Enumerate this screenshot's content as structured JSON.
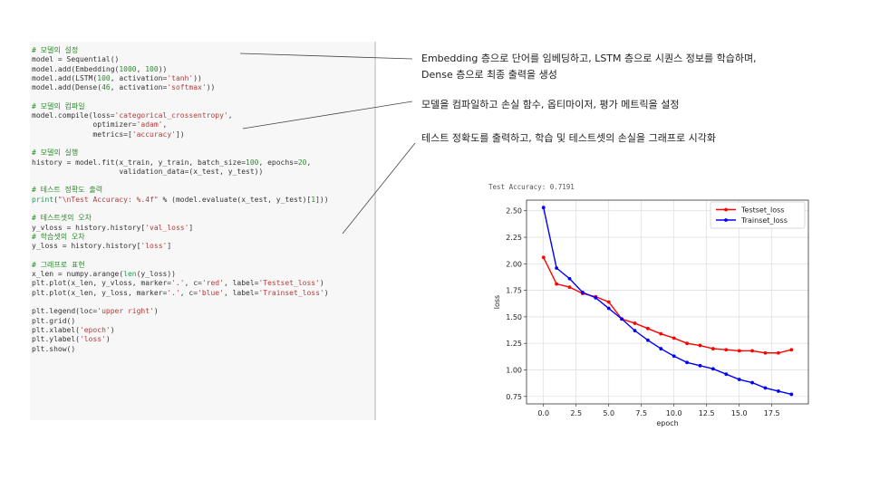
{
  "code_lines": [
    [
      {
        "t": "# 모델의 설정",
        "c": "cmt"
      }
    ],
    [
      {
        "t": "model = Sequential()",
        "c": ""
      }
    ],
    [
      {
        "t": "model.add(Embedding(",
        "c": ""
      },
      {
        "t": "1000",
        "c": "num"
      },
      {
        "t": ", ",
        "c": ""
      },
      {
        "t": "100",
        "c": "num"
      },
      {
        "t": "))",
        "c": ""
      }
    ],
    [
      {
        "t": "model.add(LSTM(",
        "c": ""
      },
      {
        "t": "100",
        "c": "num"
      },
      {
        "t": ", activation=",
        "c": ""
      },
      {
        "t": "'tanh'",
        "c": "str"
      },
      {
        "t": "))",
        "c": ""
      }
    ],
    [
      {
        "t": "model.add(Dense(",
        "c": ""
      },
      {
        "t": "46",
        "c": "num"
      },
      {
        "t": ", activation=",
        "c": ""
      },
      {
        "t": "'softmax'",
        "c": "str"
      },
      {
        "t": "))",
        "c": ""
      }
    ],
    [],
    [
      {
        "t": "# 모델의 컴파일",
        "c": "cmt"
      }
    ],
    [
      {
        "t": "model.compile(loss=",
        "c": ""
      },
      {
        "t": "'categorical_crossentropy'",
        "c": "str"
      },
      {
        "t": ",",
        "c": ""
      }
    ],
    [
      {
        "t": "              optimizer=",
        "c": ""
      },
      {
        "t": "'adam'",
        "c": "str"
      },
      {
        "t": ",",
        "c": ""
      }
    ],
    [
      {
        "t": "              metrics=[",
        "c": ""
      },
      {
        "t": "'accuracy'",
        "c": "str"
      },
      {
        "t": "])",
        "c": ""
      }
    ],
    [],
    [
      {
        "t": "# 모델의 실행",
        "c": "cmt"
      }
    ],
    [
      {
        "t": "history = model.fit(x_train, y_train, batch_size=",
        "c": ""
      },
      {
        "t": "100",
        "c": "num"
      },
      {
        "t": ", epochs=",
        "c": ""
      },
      {
        "t": "20",
        "c": "num"
      },
      {
        "t": ",",
        "c": ""
      }
    ],
    [
      {
        "t": "                    validation_data=(x_test, y_test))",
        "c": ""
      }
    ],
    [],
    [
      {
        "t": "# 테스트 정확도 출력",
        "c": "cmt"
      }
    ],
    [
      {
        "t": "print",
        "c": "kw"
      },
      {
        "t": "(",
        "c": ""
      },
      {
        "t": "\"\\nTest Accuracy: %.4f\"",
        "c": "str"
      },
      {
        "t": " % (model.evaluate(x_test, y_test)[",
        "c": ""
      },
      {
        "t": "1",
        "c": "num"
      },
      {
        "t": "]))",
        "c": ""
      }
    ],
    [],
    [
      {
        "t": "# 테스트셋의 오차",
        "c": "cmt"
      }
    ],
    [
      {
        "t": "y_vloss = history.history[",
        "c": ""
      },
      {
        "t": "'val_loss'",
        "c": "str"
      },
      {
        "t": "]",
        "c": ""
      }
    ],
    [
      {
        "t": "# 학습셋의 오차",
        "c": "cmt"
      }
    ],
    [
      {
        "t": "y_loss = history.history[",
        "c": ""
      },
      {
        "t": "'loss'",
        "c": "str"
      },
      {
        "t": "]",
        "c": ""
      }
    ],
    [],
    [
      {
        "t": "# 그래프로 표현",
        "c": "cmt"
      }
    ],
    [
      {
        "t": "x_len = numpy.arange(",
        "c": ""
      },
      {
        "t": "len",
        "c": "kw"
      },
      {
        "t": "(y_loss))",
        "c": ""
      }
    ],
    [
      {
        "t": "plt.plot(x_len, y_vloss, marker=",
        "c": ""
      },
      {
        "t": "'.'",
        "c": "str"
      },
      {
        "t": ", c=",
        "c": ""
      },
      {
        "t": "'red'",
        "c": "str"
      },
      {
        "t": ", label=",
        "c": ""
      },
      {
        "t": "'Testset_loss'",
        "c": "str"
      },
      {
        "t": ")",
        "c": ""
      }
    ],
    [
      {
        "t": "plt.plot(x_len, y_loss, marker=",
        "c": ""
      },
      {
        "t": "'.'",
        "c": "str"
      },
      {
        "t": ", c=",
        "c": ""
      },
      {
        "t": "'blue'",
        "c": "str"
      },
      {
        "t": ", label=",
        "c": ""
      },
      {
        "t": "'Trainset_loss'",
        "c": "str"
      },
      {
        "t": ")",
        "c": ""
      }
    ],
    [],
    [
      {
        "t": "plt.legend(loc=",
        "c": ""
      },
      {
        "t": "'upper right'",
        "c": "str"
      },
      {
        "t": ")",
        "c": ""
      }
    ],
    [
      {
        "t": "plt.grid()",
        "c": ""
      }
    ],
    [
      {
        "t": "plt.xlabel(",
        "c": ""
      },
      {
        "t": "'epoch'",
        "c": "str"
      },
      {
        "t": ")",
        "c": ""
      }
    ],
    [
      {
        "t": "plt.ylabel(",
        "c": ""
      },
      {
        "t": "'loss'",
        "c": "str"
      },
      {
        "t": ")",
        "c": ""
      }
    ],
    [
      {
        "t": "plt.show()",
        "c": ""
      }
    ]
  ],
  "annotations": {
    "note1_line1": "Embedding 층으로 단어를 임베딩하고, LSTM 층으로 시퀀스 정보를 학습하며,",
    "note1_line2": "Dense 층으로 최종 출력을 생성",
    "note2": "모델을 컴파일하고 손실 함수, 옵티마이저, 평가 메트릭을 설정",
    "note3": "테스트 정확도를 출력하고, 학습 및 테스트셋의 손실을 그래프로 시각화"
  },
  "output": {
    "accuracy_text": "Test Accuracy: 0.7191"
  },
  "chart_data": {
    "type": "line",
    "x": [
      0,
      1,
      2,
      3,
      4,
      5,
      6,
      7,
      8,
      9,
      10,
      11,
      12,
      13,
      14,
      15,
      16,
      17,
      18,
      19
    ],
    "series": [
      {
        "name": "Testset_loss",
        "color": "#ff0000",
        "values": [
          2.06,
          1.81,
          1.78,
          1.72,
          1.69,
          1.64,
          1.48,
          1.44,
          1.39,
          1.34,
          1.3,
          1.25,
          1.23,
          1.2,
          1.19,
          1.18,
          1.18,
          1.16,
          1.16,
          1.19
        ]
      },
      {
        "name": "Trainset_loss",
        "color": "#0000ff",
        "values": [
          2.53,
          1.96,
          1.86,
          1.73,
          1.68,
          1.58,
          1.48,
          1.37,
          1.28,
          1.2,
          1.13,
          1.07,
          1.04,
          1.01,
          0.96,
          0.91,
          0.88,
          0.83,
          0.8,
          0.77
        ]
      }
    ],
    "xlabel": "epoch",
    "ylabel": "loss",
    "xlim": [
      -1.3,
      20.3
    ],
    "ylim": [
      0.68,
      2.6
    ],
    "xticks": [
      0.0,
      2.5,
      5.0,
      7.5,
      10.0,
      12.5,
      15.0,
      17.5
    ],
    "xtick_labels": [
      "0.0",
      "2.5",
      "5.0",
      "7.5",
      "10.0",
      "12.5",
      "15.0",
      "17.5"
    ],
    "yticks": [
      0.75,
      1.0,
      1.25,
      1.5,
      1.75,
      2.0,
      2.25,
      2.5
    ],
    "ytick_labels": [
      "0.75",
      "1.00",
      "1.25",
      "1.50",
      "1.75",
      "2.00",
      "2.25",
      "2.50"
    ],
    "grid": true,
    "legend": "upper right"
  }
}
